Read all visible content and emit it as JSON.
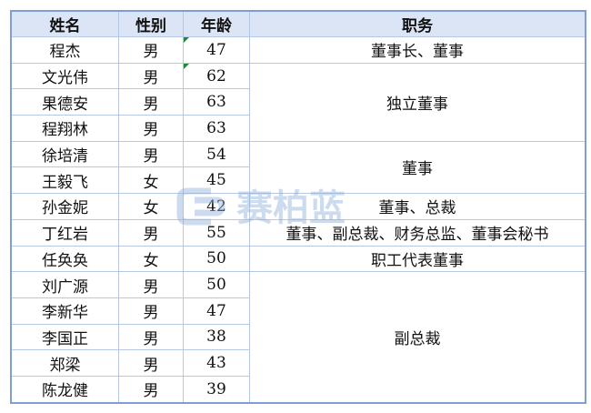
{
  "headers": [
    "姓名",
    "性别",
    "年龄",
    "职务"
  ],
  "rows": [
    {
      "name": "程杰",
      "gender": "男",
      "age": "47"
    },
    {
      "name": "文光伟",
      "gender": "男",
      "age": "62"
    },
    {
      "name": "果德安",
      "gender": "男",
      "age": "63"
    },
    {
      "name": "程翔林",
      "gender": "男",
      "age": "63"
    },
    {
      "name": "徐培清",
      "gender": "男",
      "age": "54"
    },
    {
      "name": "王毅飞",
      "gender": "女",
      "age": "45"
    },
    {
      "name": "孙金妮",
      "gender": "女",
      "age": "42"
    },
    {
      "name": "丁红岩",
      "gender": "男",
      "age": "55"
    },
    {
      "name": "任奂奂",
      "gender": "女",
      "age": "50"
    },
    {
      "name": "刘广源",
      "gender": "男",
      "age": "50"
    },
    {
      "name": "李新华",
      "gender": "男",
      "age": "47"
    },
    {
      "name": "李国正",
      "gender": "男",
      "age": "38"
    },
    {
      "name": "郑梁",
      "gender": "男",
      "age": "43"
    },
    {
      "name": "陈龙健",
      "gender": "男",
      "age": "39"
    }
  ],
  "positions": [
    {
      "title": "董事长、董事",
      "span": 1
    },
    {
      "title": "独立董事",
      "span": 3
    },
    {
      "title": "董事",
      "span": 2
    },
    {
      "title": "董事、总裁",
      "span": 1
    },
    {
      "title": "董事、副总裁、财务总监、董事会秘书",
      "span": 1
    },
    {
      "title": "职工代表董事",
      "span": 1
    },
    {
      "title": "副总裁",
      "span": 5
    }
  ],
  "watermark": {
    "text": "赛柏蓝",
    "subtext": "SAIBAILAN",
    "color": "#8fb0d8"
  }
}
